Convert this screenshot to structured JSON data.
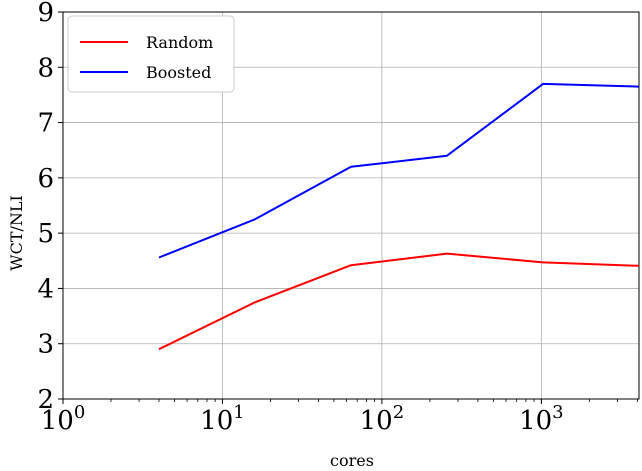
{
  "chart_data": {
    "type": "line",
    "title": "",
    "xlabel": "cores",
    "ylabel": "WCT/NLI",
    "xscale": "log",
    "xlim": [
      1,
      4096
    ],
    "ylim": [
      2,
      9
    ],
    "x_ticks": [
      {
        "value": 1,
        "base": "10",
        "exp": "0"
      },
      {
        "value": 10,
        "base": "10",
        "exp": "1"
      },
      {
        "value": 100,
        "base": "10",
        "exp": "2"
      },
      {
        "value": 1000,
        "base": "10",
        "exp": "3"
      }
    ],
    "y_ticks": [
      "2",
      "3",
      "4",
      "5",
      "6",
      "7",
      "8",
      "9"
    ],
    "grid": true,
    "legend_position": "top-left",
    "x": [
      4,
      16,
      64,
      256,
      1024,
      4096
    ],
    "series": [
      {
        "name": "Random",
        "color": "#ff0000",
        "values": [
          2.9,
          3.75,
          4.42,
          4.63,
          4.47,
          4.41
        ]
      },
      {
        "name": "Boosted",
        "color": "#0000ff",
        "values": [
          4.56,
          5.25,
          6.2,
          6.4,
          7.7,
          7.65
        ]
      }
    ]
  }
}
